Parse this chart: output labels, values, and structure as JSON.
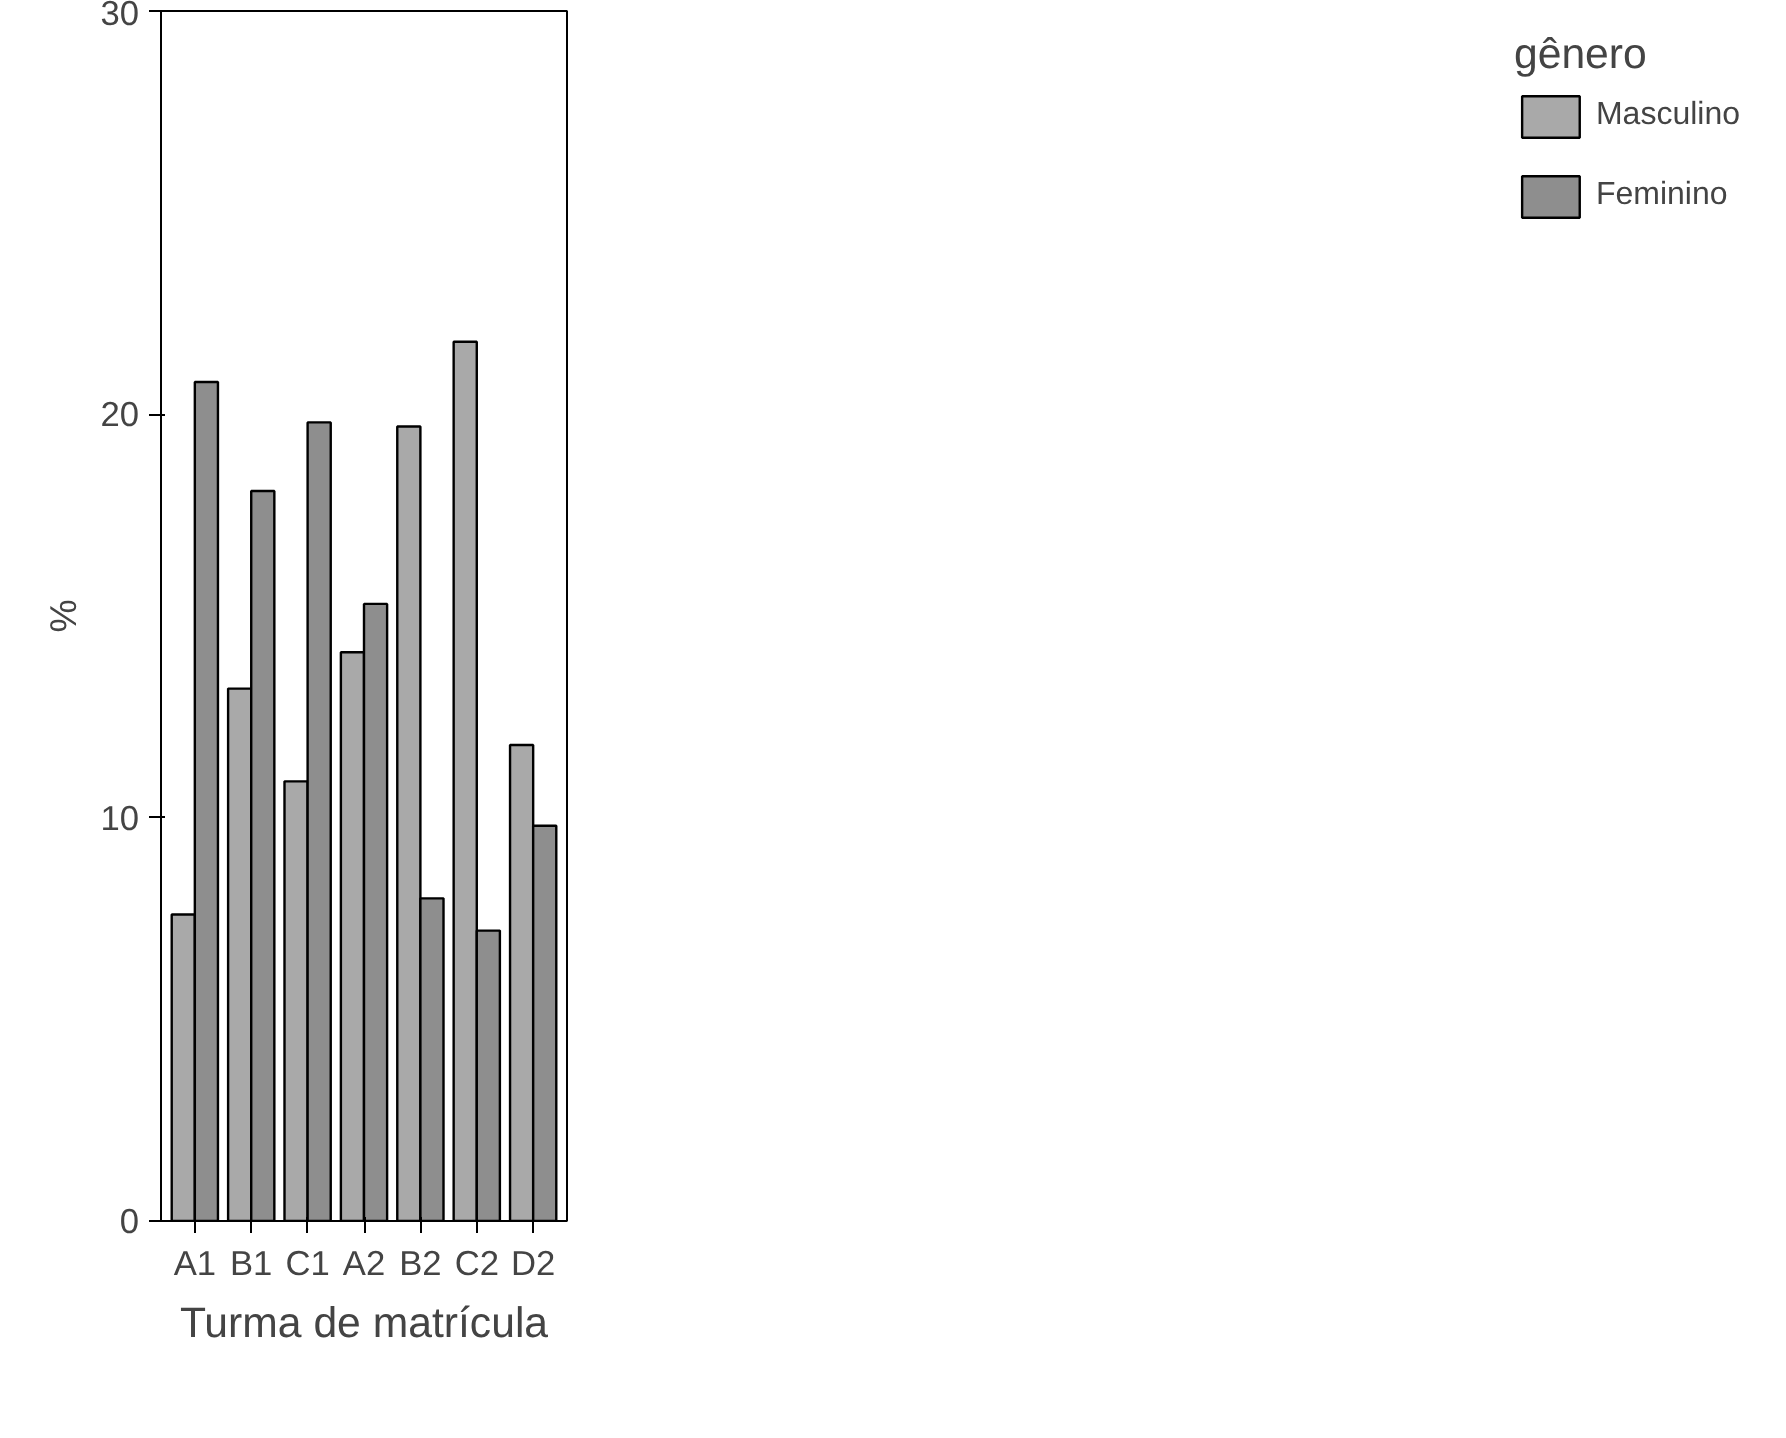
{
  "chart_data": {
    "type": "bar",
    "xlabel": "Turma de matrícula",
    "ylabel": "%",
    "legend_title": "gênero",
    "categories": [
      "A1",
      "B1",
      "C1",
      "A2",
      "B2",
      "C2",
      "D2"
    ],
    "series": [
      {
        "name": "Masculino",
        "color": "#a9a9a9",
        "values": [
          7.6,
          13.2,
          10.9,
          14.1,
          19.7,
          21.8,
          11.8
        ]
      },
      {
        "name": "Feminino",
        "color": "#8e8e8e",
        "values": [
          20.8,
          18.1,
          19.8,
          15.3,
          8.0,
          7.2,
          9.8
        ]
      }
    ],
    "ylim": [
      0,
      30
    ],
    "yticks": [
      0,
      10,
      20,
      30
    ],
    "grid": false,
    "legend": "right"
  }
}
